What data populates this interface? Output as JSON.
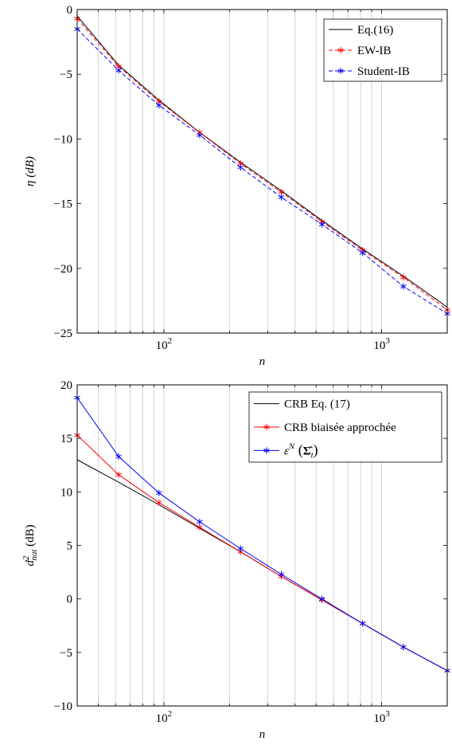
{
  "chart_data": [
    {
      "type": "line",
      "xscale": "log",
      "xlim": [
        40,
        2000
      ],
      "ylim": [
        -25,
        0
      ],
      "xlabel": "n",
      "ylabel": "η (dB)",
      "xtick_labels": [
        "10^2",
        "10^3"
      ],
      "yticks": [
        0,
        -5,
        -10,
        -15,
        -20,
        -25
      ],
      "ytick_labels": [
        "0",
        "−5",
        "−10",
        "−15",
        "−20",
        "−25"
      ],
      "grid": "vertical log grid",
      "legend_position": "top-right",
      "series": [
        {
          "name": "Eq.(16)",
          "color": "#000000",
          "marker": "none",
          "dash": "solid",
          "x": [
            40,
            62,
            95,
            146,
            225,
            346,
            532,
            818,
            1258,
            2000
          ],
          "y": [
            -0.5,
            -4.3,
            -7.0,
            -9.5,
            -11.8,
            -14.0,
            -16.3,
            -18.5,
            -20.6,
            -23.0
          ]
        },
        {
          "name": "EW-IB",
          "color": "#ff0000",
          "marker": "asterisk",
          "dash": "dashed",
          "x": [
            40,
            62,
            95,
            146,
            225,
            346,
            532,
            818,
            1258,
            2000
          ],
          "y": [
            -0.7,
            -4.4,
            -7.1,
            -9.5,
            -11.9,
            -14.1,
            -16.4,
            -18.6,
            -20.7,
            -23.2
          ]
        },
        {
          "name": "Student-IB",
          "color": "#0000ff",
          "marker": "asterisk",
          "dash": "dashed",
          "x": [
            40,
            62,
            95,
            146,
            225,
            346,
            532,
            818,
            1258,
            2000
          ],
          "y": [
            -1.5,
            -4.7,
            -7.4,
            -9.7,
            -12.2,
            -14.5,
            -16.6,
            -18.8,
            -21.4,
            -23.5
          ]
        }
      ]
    },
    {
      "type": "line",
      "xscale": "log",
      "xlim": [
        40,
        2000
      ],
      "ylim": [
        -10,
        20
      ],
      "xlabel": "n",
      "ylabel": "d²_nat (dB)",
      "xtick_labels": [
        "10^2",
        "10^3"
      ],
      "yticks": [
        20,
        15,
        10,
        5,
        0,
        -5,
        -10
      ],
      "ytick_labels": [
        "20",
        "15",
        "10",
        "5",
        "0",
        "−5",
        "−10"
      ],
      "grid": "vertical log grid",
      "legend_position": "top-right",
      "series": [
        {
          "name": "CRB Eq. (17)",
          "color": "#000000",
          "marker": "none",
          "dash": "solid",
          "x": [
            40,
            62,
            95,
            146,
            225,
            346,
            532,
            818,
            1258,
            2000
          ],
          "y": [
            13.0,
            10.9,
            8.8,
            6.6,
            4.4,
            2.1,
            -0.1,
            -2.3,
            -4.5,
            -6.7
          ]
        },
        {
          "name": "CRB biaisée approchée",
          "color": "#ff0000",
          "marker": "asterisk",
          "dash": "solid",
          "x": [
            40,
            62,
            95,
            146,
            225,
            346,
            532,
            818,
            1258,
            2000
          ],
          "y": [
            15.3,
            11.6,
            9.0,
            6.7,
            4.4,
            2.1,
            -0.1,
            -2.3,
            -4.5,
            -6.7
          ]
        },
        {
          "name": "ε^N (Σ̂_t)",
          "color": "#0000ff",
          "marker": "asterisk",
          "dash": "solid",
          "x": [
            40,
            62,
            95,
            146,
            225,
            346,
            532,
            818,
            1258,
            2000
          ],
          "y": [
            18.8,
            13.3,
            9.9,
            7.2,
            4.7,
            2.3,
            0.0,
            -2.3,
            -4.5,
            -6.7
          ]
        }
      ]
    }
  ]
}
